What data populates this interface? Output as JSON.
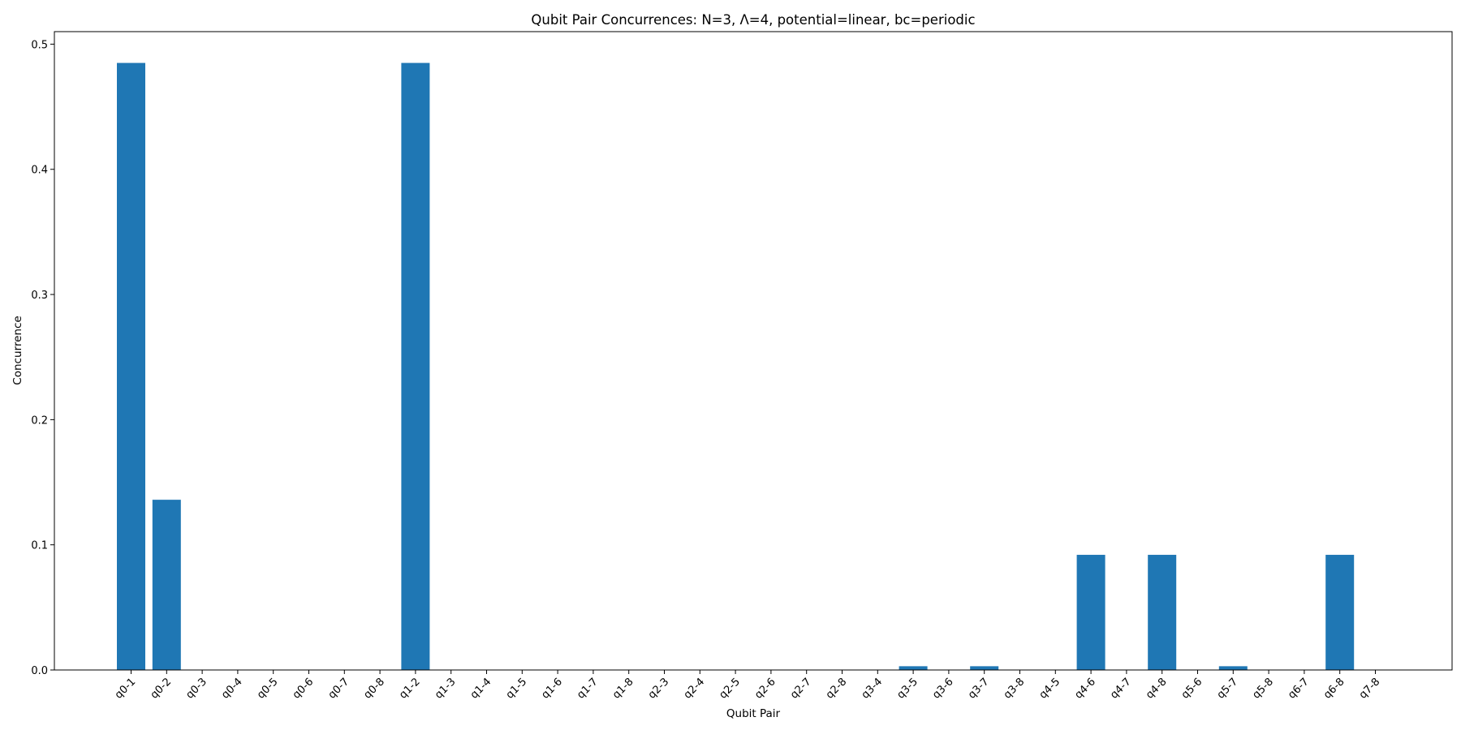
{
  "chart_data": {
    "type": "bar",
    "title": "Qubit Pair Concurrences: N=3, Λ=4, potential=linear, bc=periodic",
    "xlabel": "Qubit Pair",
    "ylabel": "Concurrence",
    "ylim": [
      0,
      0.51
    ],
    "yticks": [
      0.0,
      0.1,
      0.2,
      0.3,
      0.4,
      0.5
    ],
    "ytick_labels": [
      "0.0",
      "0.1",
      "0.2",
      "0.3",
      "0.4",
      "0.5"
    ],
    "grid": false,
    "bar_color": "#1f77b4",
    "categories": [
      "q0-1",
      "q0-2",
      "q0-3",
      "q0-4",
      "q0-5",
      "q0-6",
      "q0-7",
      "q0-8",
      "q1-2",
      "q1-3",
      "q1-4",
      "q1-5",
      "q1-6",
      "q1-7",
      "q1-8",
      "q2-3",
      "q2-4",
      "q2-5",
      "q2-6",
      "q2-7",
      "q2-8",
      "q3-4",
      "q3-5",
      "q3-6",
      "q3-7",
      "q3-8",
      "q4-5",
      "q4-6",
      "q4-7",
      "q4-8",
      "q5-6",
      "q5-7",
      "q5-8",
      "q6-7",
      "q6-8",
      "q7-8"
    ],
    "values": [
      0.485,
      0.136,
      0,
      0,
      0,
      0,
      0,
      0,
      0.485,
      0,
      0,
      0,
      0,
      0,
      0,
      0,
      0,
      0,
      0,
      0,
      0,
      0,
      0.003,
      0,
      0.003,
      0,
      0,
      0.092,
      0,
      0.092,
      0,
      0.003,
      0,
      0,
      0.092,
      0
    ]
  }
}
